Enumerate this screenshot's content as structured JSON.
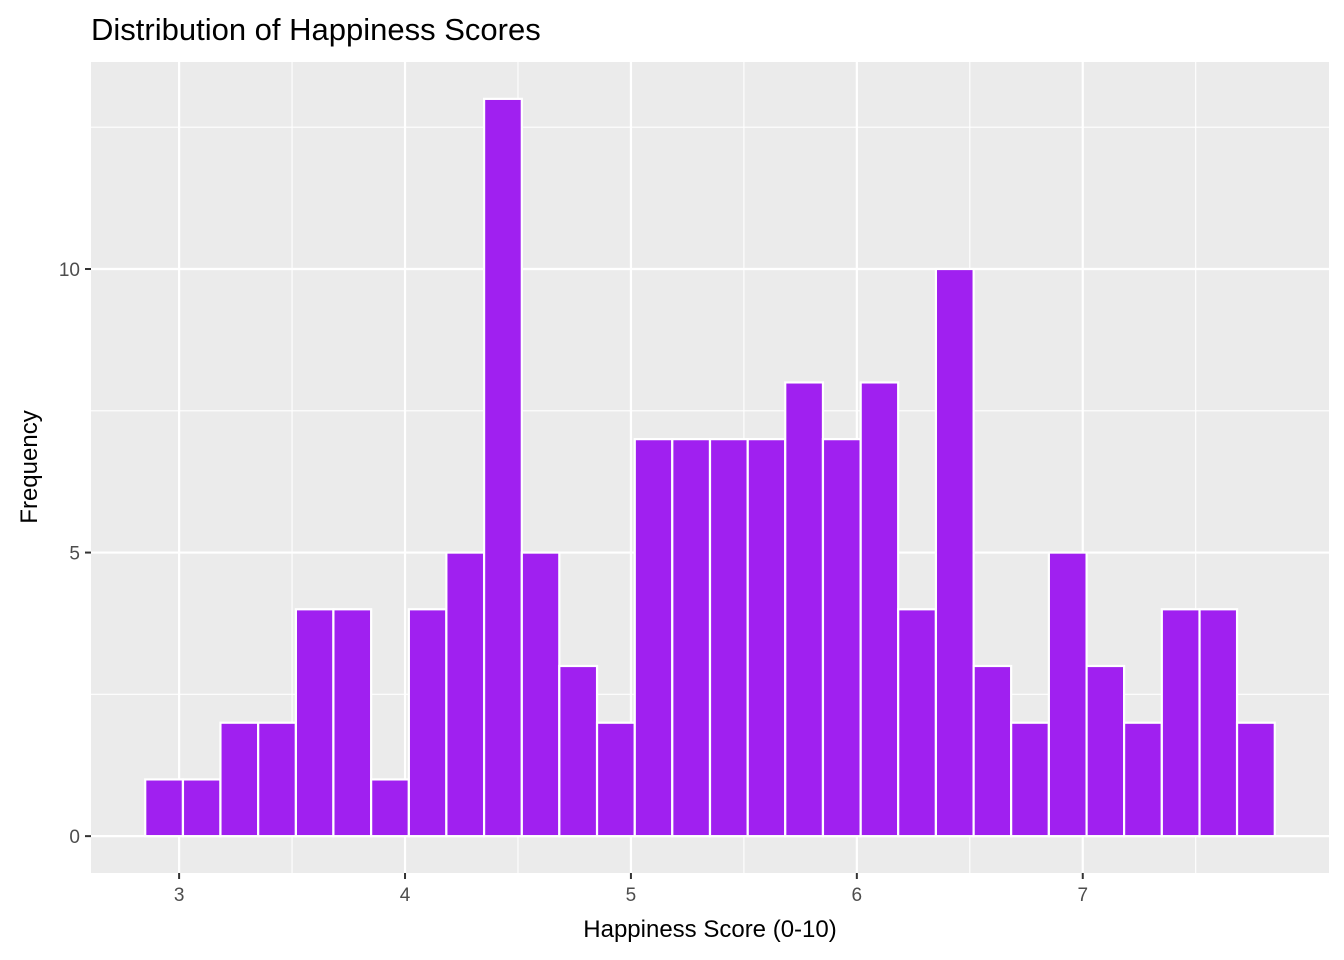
{
  "chart_data": {
    "type": "bar",
    "subtype": "histogram",
    "title": "Distribution of Happiness Scores",
    "xlabel": "Happiness Score (0-10)",
    "ylabel": "Frequency",
    "bin_width": 0.1667,
    "bins": [
      {
        "start": 2.85,
        "end": 3.017,
        "count": 1
      },
      {
        "start": 3.017,
        "end": 3.183,
        "count": 1
      },
      {
        "start": 3.183,
        "end": 3.35,
        "count": 2
      },
      {
        "start": 3.35,
        "end": 3.517,
        "count": 2
      },
      {
        "start": 3.517,
        "end": 3.683,
        "count": 4
      },
      {
        "start": 3.683,
        "end": 3.85,
        "count": 4
      },
      {
        "start": 3.85,
        "end": 4.017,
        "count": 1
      },
      {
        "start": 4.017,
        "end": 4.183,
        "count": 4
      },
      {
        "start": 4.183,
        "end": 4.35,
        "count": 5
      },
      {
        "start": 4.35,
        "end": 4.517,
        "count": 13
      },
      {
        "start": 4.517,
        "end": 4.683,
        "count": 5
      },
      {
        "start": 4.683,
        "end": 4.85,
        "count": 3
      },
      {
        "start": 4.85,
        "end": 5.017,
        "count": 2
      },
      {
        "start": 5.017,
        "end": 5.183,
        "count": 7
      },
      {
        "start": 5.183,
        "end": 5.35,
        "count": 7
      },
      {
        "start": 5.35,
        "end": 5.517,
        "count": 7
      },
      {
        "start": 5.517,
        "end": 5.683,
        "count": 7
      },
      {
        "start": 5.683,
        "end": 5.85,
        "count": 8
      },
      {
        "start": 5.85,
        "end": 6.017,
        "count": 7
      },
      {
        "start": 6.017,
        "end": 6.183,
        "count": 8
      },
      {
        "start": 6.183,
        "end": 6.35,
        "count": 4
      },
      {
        "start": 6.35,
        "end": 6.517,
        "count": 10
      },
      {
        "start": 6.517,
        "end": 6.683,
        "count": 3
      },
      {
        "start": 6.683,
        "end": 6.85,
        "count": 2
      },
      {
        "start": 6.85,
        "end": 7.017,
        "count": 5
      },
      {
        "start": 7.017,
        "end": 7.183,
        "count": 3
      },
      {
        "start": 7.183,
        "end": 7.35,
        "count": 2
      },
      {
        "start": 7.35,
        "end": 7.517,
        "count": 4
      },
      {
        "start": 7.517,
        "end": 7.683,
        "count": 4
      },
      {
        "start": 7.683,
        "end": 7.85,
        "count": 2
      }
    ],
    "xlim": [
      2.61,
      8.09
    ],
    "ylim": [
      -0.65,
      13.65
    ],
    "x_ticks": [
      3,
      4,
      5,
      6,
      7
    ],
    "x_tick_labels": [
      "3",
      "4",
      "5",
      "6",
      "7"
    ],
    "y_ticks": [
      0,
      5,
      10
    ],
    "y_tick_labels": [
      "0",
      "5",
      "10"
    ],
    "grid": true,
    "legend": "none",
    "colors": {
      "bar_fill": "#A020F0",
      "bar_stroke": "#FFFFFF",
      "panel_background": "#EBEBEB",
      "grid_line": "#FFFFFF",
      "tick_label": "#4D4D4D",
      "tick_mark": "#333333"
    }
  }
}
